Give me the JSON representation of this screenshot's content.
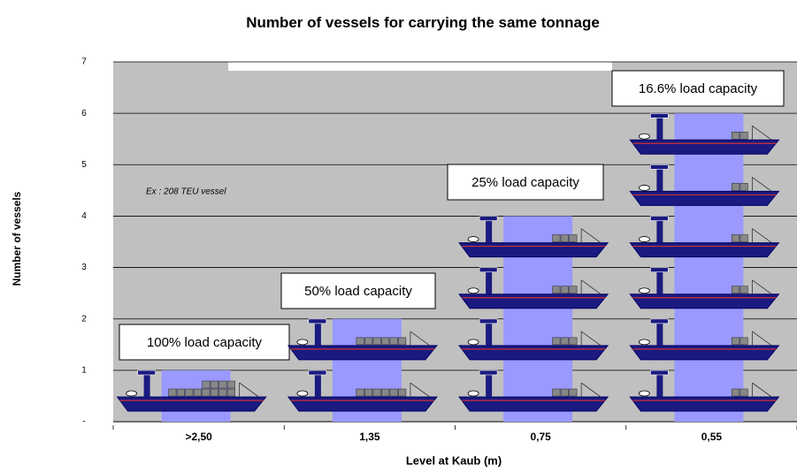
{
  "chart_data": {
    "type": "pictogram",
    "title": "Number of vessels for carrying the same tonnage",
    "x_label": "Level at Kaub (m)",
    "y_label": "Number of vessels",
    "categories": [
      ">2,50",
      "1,35",
      "0,75",
      "0,55"
    ],
    "values": [
      1,
      2,
      4,
      6
    ],
    "annotations": [
      "100% load capacity",
      "50% load capacity",
      "25% load capacity",
      "16.6% load capacity"
    ],
    "note": "Ex : 208 TEU vessel",
    "color": "#9999ff",
    "ylim": [
      0,
      7
    ],
    "yticks": [
      {
        "value": 0,
        "label": "-"
      },
      1,
      2,
      3,
      4,
      5,
      6,
      7
    ],
    "grid": true
  }
}
